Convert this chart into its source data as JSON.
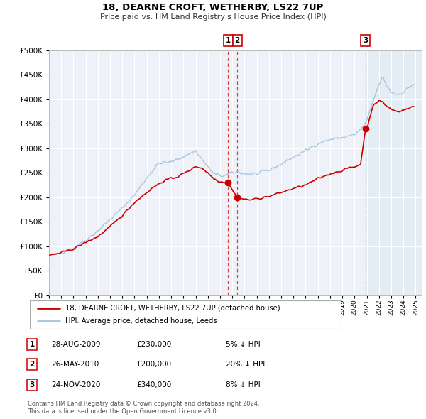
{
  "title": "18, DEARNE CROFT, WETHERBY, LS22 7UP",
  "subtitle": "Price paid vs. HM Land Registry's House Price Index (HPI)",
  "hpi_color": "#a8c4e0",
  "price_color": "#cc0000",
  "bg_color": "#eef2f8",
  "ylim": [
    0,
    500000
  ],
  "yticks": [
    0,
    50000,
    100000,
    150000,
    200000,
    250000,
    300000,
    350000,
    400000,
    450000,
    500000
  ],
  "xlim_start": 1995.0,
  "xlim_end": 2025.5,
  "sale_dates": [
    2009.66,
    2010.4,
    2020.9
  ],
  "sale_prices": [
    230000,
    200000,
    340000
  ],
  "sale_labels": [
    "1",
    "2",
    "3"
  ],
  "sale_info": [
    {
      "label": "1",
      "date": "28-AUG-2009",
      "price": "£230,000",
      "pct": "5% ↓ HPI"
    },
    {
      "label": "2",
      "date": "26-MAY-2010",
      "price": "£200,000",
      "pct": "20% ↓ HPI"
    },
    {
      "label": "3",
      "date": "24-NOV-2020",
      "price": "£340,000",
      "pct": "8% ↓ HPI"
    }
  ],
  "legend_line1": "18, DEARNE CROFT, WETHERBY, LS22 7UP (detached house)",
  "legend_line2": "HPI: Average price, detached house, Leeds",
  "footer1": "Contains HM Land Registry data © Crown copyright and database right 2024.",
  "footer2": "This data is licensed under the Open Government Licence v3.0."
}
